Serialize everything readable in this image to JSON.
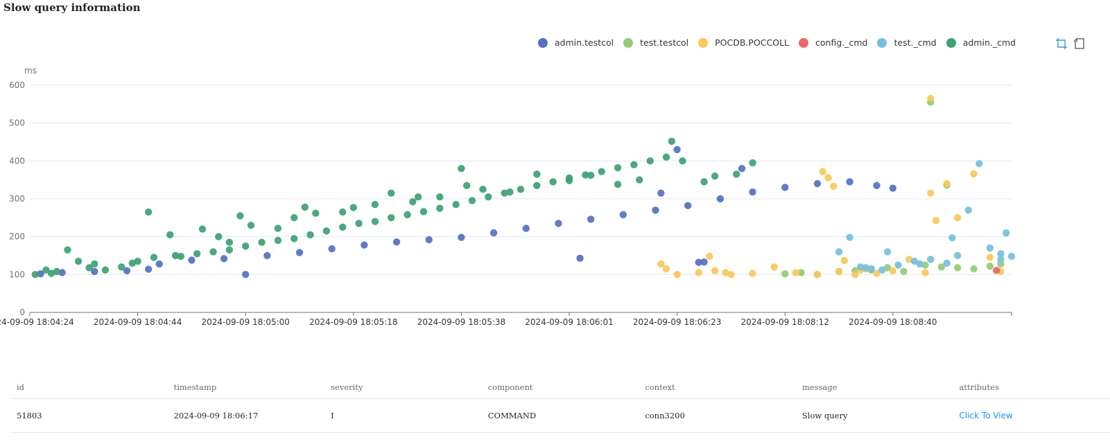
{
  "page": {
    "title": "Slow query information"
  },
  "legend": [
    {
      "label": "admin.testcol",
      "color": "#5470c6"
    },
    {
      "label": "test.testcol",
      "color": "#91cc75"
    },
    {
      "label": "POCDB.POCCOLL",
      "color": "#fac858"
    },
    {
      "label": "config._cmd",
      "color": "#ee6666"
    },
    {
      "label": "test._cmd",
      "color": "#73c0de"
    },
    {
      "label": "admin._cmd",
      "color": "#3ba272"
    }
  ],
  "toolbox": {
    "zoom_icon": "data-zoom-icon",
    "restore_icon": "restore-icon"
  },
  "chart_data": {
    "type": "scatter",
    "title": "Slow query information",
    "ylabel": "ms",
    "ylim": [
      0,
      600
    ],
    "yticks": [
      "0",
      "100",
      "200",
      "300",
      "400",
      "500",
      "600"
    ],
    "xticks": [
      "2024-09-09 18:04:24",
      "2024-09-09 18:04:44",
      "2024-09-09 18:05:00",
      "2024-09-09 18:05:18",
      "2024-09-09 18:05:38",
      "2024-09-09 18:06:01",
      "2024-09-09 18:06:23",
      "2024-09-09 18:08:12",
      "2024-09-09 18:08:40"
    ],
    "xlim": [
      0,
      9.1
    ],
    "series": [
      {
        "name": "admin.testcol",
        "color": "#5470c6",
        "points": [
          [
            0.1,
            102
          ],
          [
            0.3,
            105
          ],
          [
            0.6,
            108
          ],
          [
            0.9,
            110
          ],
          [
            1.2,
            128
          ],
          [
            1.5,
            138
          ],
          [
            1.8,
            142
          ],
          [
            2.2,
            150
          ],
          [
            2.5,
            158
          ],
          [
            2.8,
            168
          ],
          [
            3.1,
            178
          ],
          [
            3.4,
            186
          ],
          [
            3.7,
            192
          ],
          [
            4.0,
            198
          ],
          [
            4.3,
            210
          ],
          [
            4.6,
            222
          ],
          [
            4.9,
            235
          ],
          [
            5.2,
            246
          ],
          [
            5.5,
            258
          ],
          [
            5.8,
            270
          ],
          [
            6.1,
            282
          ],
          [
            6.4,
            300
          ],
          [
            6.7,
            318
          ],
          [
            7.0,
            330
          ],
          [
            7.3,
            340
          ],
          [
            7.6,
            345
          ],
          [
            8.0,
            328
          ],
          [
            1.1,
            114
          ],
          [
            2.0,
            100
          ],
          [
            5.1,
            143
          ],
          [
            6.2,
            132
          ],
          [
            6.25,
            133
          ],
          [
            6.0,
            430
          ],
          [
            5.85,
            315
          ],
          [
            6.6,
            380
          ],
          [
            7.85,
            335
          ]
        ]
      },
      {
        "name": "test.testcol",
        "color": "#91cc75",
        "points": [
          [
            7.0,
            102
          ],
          [
            7.15,
            105
          ],
          [
            7.3,
            100
          ],
          [
            7.5,
            108
          ],
          [
            7.65,
            110
          ],
          [
            7.8,
            112
          ],
          [
            7.95,
            118
          ],
          [
            8.1,
            108
          ],
          [
            8.3,
            125
          ],
          [
            8.45,
            120
          ],
          [
            8.6,
            118
          ],
          [
            8.75,
            115
          ],
          [
            8.9,
            122
          ],
          [
            9.0,
            128
          ],
          [
            8.35,
            555
          ],
          [
            8.5,
            336
          ]
        ]
      },
      {
        "name": "POCDB.POCCOLL",
        "color": "#fac858",
        "points": [
          [
            5.85,
            128
          ],
          [
            5.9,
            115
          ],
          [
            6.0,
            100
          ],
          [
            6.2,
            105
          ],
          [
            6.35,
            110
          ],
          [
            6.5,
            100
          ],
          [
            6.7,
            103
          ],
          [
            6.9,
            120
          ],
          [
            7.1,
            105
          ],
          [
            7.3,
            100
          ],
          [
            7.5,
            108
          ],
          [
            7.7,
            112
          ],
          [
            7.85,
            103
          ],
          [
            8.0,
            110
          ],
          [
            8.15,
            140
          ],
          [
            8.3,
            105
          ],
          [
            7.55,
            137
          ],
          [
            7.65,
            100
          ],
          [
            7.75,
            115
          ],
          [
            8.35,
            565
          ],
          [
            8.35,
            315
          ],
          [
            8.4,
            243
          ],
          [
            8.5,
            340
          ],
          [
            8.6,
            250
          ],
          [
            8.75,
            366
          ],
          [
            8.9,
            145
          ],
          [
            9.0,
            108
          ],
          [
            7.35,
            372
          ],
          [
            7.4,
            356
          ],
          [
            7.45,
            333
          ],
          [
            6.3,
            148
          ],
          [
            6.45,
            105
          ]
        ]
      },
      {
        "name": "config._cmd",
        "color": "#ee6666",
        "points": [
          [
            8.96,
            111
          ]
        ]
      },
      {
        "name": "test._cmd",
        "color": "#73c0de",
        "points": [
          [
            7.5,
            160
          ],
          [
            7.6,
            198
          ],
          [
            7.7,
            120
          ],
          [
            7.8,
            115
          ],
          [
            7.95,
            160
          ],
          [
            8.05,
            125
          ],
          [
            8.2,
            135
          ],
          [
            8.35,
            140
          ],
          [
            8.5,
            130
          ],
          [
            8.6,
            150
          ],
          [
            8.7,
            270
          ],
          [
            8.8,
            393
          ],
          [
            8.9,
            170
          ],
          [
            9.0,
            140
          ],
          [
            9.05,
            210
          ],
          [
            9.1,
            148
          ],
          [
            8.55,
            197
          ],
          [
            8.25,
            128
          ],
          [
            7.9,
            112
          ],
          [
            7.75,
            118
          ],
          [
            9.0,
            155
          ]
        ]
      },
      {
        "name": "admin._cmd",
        "color": "#3ba272",
        "points": [
          [
            0.05,
            100
          ],
          [
            0.15,
            112
          ],
          [
            0.25,
            108
          ],
          [
            0.35,
            165
          ],
          [
            0.45,
            135
          ],
          [
            0.55,
            118
          ],
          [
            0.7,
            112
          ],
          [
            0.85,
            120
          ],
          [
            1.0,
            135
          ],
          [
            1.15,
            145
          ],
          [
            1.3,
            205
          ],
          [
            1.4,
            148
          ],
          [
            1.55,
            155
          ],
          [
            1.7,
            160
          ],
          [
            1.85,
            165
          ],
          [
            2.0,
            175
          ],
          [
            2.15,
            185
          ],
          [
            2.3,
            190
          ],
          [
            2.45,
            195
          ],
          [
            2.6,
            205
          ],
          [
            2.75,
            215
          ],
          [
            2.9,
            225
          ],
          [
            3.05,
            235
          ],
          [
            3.2,
            240
          ],
          [
            3.35,
            250
          ],
          [
            3.5,
            258
          ],
          [
            3.65,
            266
          ],
          [
            3.8,
            275
          ],
          [
            3.95,
            285
          ],
          [
            4.1,
            295
          ],
          [
            4.25,
            305
          ],
          [
            4.4,
            315
          ],
          [
            4.55,
            325
          ],
          [
            4.7,
            335
          ],
          [
            4.85,
            345
          ],
          [
            5.0,
            355
          ],
          [
            5.15,
            363
          ],
          [
            5.3,
            372
          ],
          [
            5.45,
            382
          ],
          [
            5.6,
            390
          ],
          [
            5.75,
            400
          ],
          [
            5.9,
            410
          ],
          [
            1.1,
            265
          ],
          [
            1.6,
            220
          ],
          [
            1.75,
            200
          ],
          [
            1.95,
            255
          ],
          [
            2.05,
            230
          ],
          [
            2.3,
            222
          ],
          [
            2.55,
            278
          ],
          [
            2.65,
            262
          ],
          [
            3.0,
            277
          ],
          [
            3.2,
            285
          ],
          [
            3.55,
            292
          ],
          [
            3.8,
            305
          ],
          [
            4.05,
            335
          ],
          [
            4.2,
            325
          ],
          [
            4.45,
            318
          ],
          [
            4.7,
            365
          ],
          [
            5.0,
            348
          ],
          [
            5.2,
            362
          ],
          [
            5.45,
            338
          ],
          [
            5.65,
            350
          ],
          [
            5.95,
            452
          ],
          [
            6.05,
            400
          ],
          [
            6.25,
            345
          ],
          [
            6.35,
            360
          ],
          [
            6.55,
            365
          ],
          [
            6.7,
            395
          ],
          [
            4.0,
            380
          ],
          [
            3.6,
            305
          ],
          [
            3.35,
            315
          ],
          [
            2.9,
            265
          ],
          [
            2.45,
            250
          ],
          [
            1.85,
            185
          ],
          [
            1.35,
            150
          ],
          [
            0.95,
            130
          ],
          [
            0.6,
            128
          ],
          [
            0.2,
            103
          ]
        ]
      }
    ]
  },
  "table": {
    "columns": [
      "id",
      "timestamp",
      "severity",
      "component",
      "context",
      "message",
      "attributes"
    ],
    "rows": [
      {
        "id": "51803",
        "timestamp": "2024-09-09 18:06:17",
        "severity": "I",
        "component": "COMMAND",
        "context": "conn3200",
        "message": "Slow query",
        "attributes": "Click To View"
      }
    ]
  }
}
